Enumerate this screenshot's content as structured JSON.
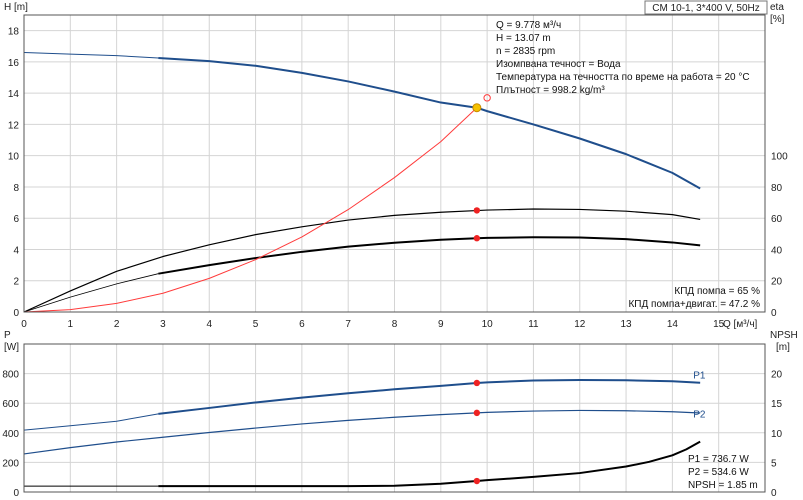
{
  "title": "CM 10-1, 3*400 V, 50Hz",
  "colors": {
    "head": "#1f4e8c",
    "efficiency": "#000000",
    "system": "#ff3b3b",
    "power": "#1f4e8c",
    "npsh": "#000000",
    "duty_point": "#ee2222",
    "intersection": "#f5c200"
  },
  "chart_data": [
    {
      "type": "line",
      "name": "upper",
      "xlabel": "Q [м³/ч]",
      "ylabel": "H [m]",
      "ylabel_unit": "",
      "y2label": "eta",
      "y2label_unit": "[%]",
      "xlim": [
        0,
        16
      ],
      "ylim": [
        0,
        19
      ],
      "y2lim": [
        0,
        190
      ],
      "xticks": [
        0,
        1,
        2,
        3,
        4,
        5,
        6,
        7,
        8,
        9,
        10,
        11,
        12,
        13,
        14,
        15
      ],
      "xtick_labels": [
        "0",
        "1",
        "2",
        "3",
        "4",
        "5",
        "6",
        "7",
        "8",
        "9",
        "10",
        "11",
        "12",
        "13",
        "14",
        "15"
      ],
      "yticks": [
        0,
        2,
        4,
        6,
        8,
        10,
        12,
        14,
        16,
        18
      ],
      "ytick_labels": [
        "0",
        "2",
        "4",
        "6",
        "8",
        "10",
        "12",
        "14",
        "16",
        "18"
      ],
      "y2ticks": [
        0,
        20,
        40,
        60,
        80,
        100
      ],
      "y2tick_labels": [
        "0",
        "20",
        "40",
        "60",
        "80",
        "100"
      ],
      "grid": true,
      "series": [
        {
          "key": "head_thin",
          "axis": "y",
          "x": [
            0,
            1,
            2,
            2.9
          ],
          "values": [
            16.6,
            16.5,
            16.4,
            16.25
          ]
        },
        {
          "key": "head",
          "axis": "y",
          "x": [
            2.9,
            4,
            5,
            6,
            7,
            8,
            9,
            9.778,
            10,
            11,
            12,
            13,
            14,
            14.6
          ],
          "values": [
            16.25,
            16.05,
            15.75,
            15.3,
            14.75,
            14.1,
            13.4,
            13.07,
            12.85,
            12.0,
            11.1,
            10.1,
            8.9,
            7.9
          ]
        },
        {
          "key": "eta_pump",
          "axis": "y2",
          "x": [
            0,
            1,
            2,
            3,
            4,
            5,
            6,
            7,
            8,
            9,
            9.778,
            10,
            11,
            12,
            13,
            14,
            14.6
          ],
          "values": [
            0,
            13.5,
            26,
            35.5,
            43,
            49.5,
            54.5,
            58.8,
            61.8,
            63.8,
            64.9,
            65.2,
            65.9,
            65.6,
            64.5,
            62.3,
            59.2
          ]
        },
        {
          "key": "eta_total_thin",
          "axis": "y2",
          "x": [
            0,
            1,
            2,
            2.9
          ],
          "values": [
            0,
            9.5,
            18,
            24.5
          ]
        },
        {
          "key": "eta_total",
          "axis": "y2",
          "x": [
            2.9,
            4,
            5,
            6,
            7,
            8,
            9,
            9.778,
            10,
            11,
            12,
            13,
            14,
            14.6
          ],
          "values": [
            24.5,
            30,
            34.5,
            38.5,
            41.8,
            44.3,
            46.2,
            47.2,
            47.4,
            47.8,
            47.7,
            46.6,
            44.5,
            42.6
          ]
        },
        {
          "key": "system",
          "axis": "y",
          "x": [
            0,
            1,
            2,
            3,
            4,
            5,
            6,
            7,
            8,
            9,
            9.778
          ],
          "values": [
            0,
            0.15,
            0.55,
            1.2,
            2.15,
            3.35,
            4.8,
            6.55,
            8.6,
            10.9,
            13.07
          ]
        }
      ],
      "duty_points": [
        {
          "x": 9.778,
          "axis": "y2",
          "value": 65
        },
        {
          "x": 9.778,
          "axis": "y2",
          "value": 47.2
        }
      ],
      "intersection_point": {
        "x": 9.778,
        "value": 13.07
      },
      "open_point": {
        "x": 10.0,
        "value": 13.7
      },
      "info_box": [
        "Q = 9.778 м³/ч",
        "H = 13.07 m",
        "n = 2835 rpm",
        "Изомпвана течност = Вода",
        "Температура на течността по време на работа = 20 °C",
        "Плътност = 998.2 kg/m³"
      ],
      "efficiency_notes": [
        "КПД помпа = 65 %",
        "КПД помпа+двигат. = 47.2 %"
      ]
    },
    {
      "type": "line",
      "name": "lower",
      "xlabel": "",
      "ylabel": "P",
      "ylabel_unit": "[W]",
      "y2label": "NPSH",
      "y2label_unit": "[m]",
      "xlim": [
        0,
        16
      ],
      "ylim": [
        0,
        1000
      ],
      "y2lim": [
        0,
        25
      ],
      "yticks": [
        0,
        200,
        400,
        600,
        800
      ],
      "ytick_labels": [
        "0",
        "200",
        "400",
        "600",
        "800"
      ],
      "y2ticks": [
        0,
        5,
        10,
        15,
        20
      ],
      "y2tick_labels": [
        "0",
        "5",
        "10",
        "15",
        "20"
      ],
      "grid": true,
      "series": [
        {
          "key": "p1_thin",
          "axis": "y",
          "x": [
            0,
            1,
            2,
            2.9
          ],
          "values": [
            418,
            448,
            478,
            528
          ]
        },
        {
          "key": "p1",
          "axis": "y",
          "x": [
            2.9,
            4,
            5,
            6,
            7,
            8,
            9,
            9.778,
            10,
            11,
            12,
            13,
            14,
            14.6
          ],
          "values": [
            528,
            568,
            605,
            638,
            667,
            694,
            717,
            736.7,
            741,
            753,
            757,
            755,
            748,
            738
          ],
          "label": "P1",
          "label_x": 14.45,
          "label_value": 768
        },
        {
          "key": "p2",
          "axis": "y",
          "x": [
            0,
            1,
            2,
            3,
            4,
            5,
            6,
            7,
            8,
            9,
            9.778,
            10,
            11,
            12,
            13,
            14,
            14.6
          ],
          "values": [
            257,
            300,
            338,
            370,
            402,
            432,
            460,
            484,
            505,
            523,
            534.6,
            538,
            547,
            551,
            549,
            542,
            534
          ],
          "label": "P2",
          "label_x": 14.45,
          "label_value": 505
        },
        {
          "key": "npsh_thin",
          "axis": "y2",
          "x": [
            0,
            2.9
          ],
          "values": [
            1.0,
            1.0
          ]
        },
        {
          "key": "npsh",
          "axis": "y2",
          "x": [
            2.9,
            4,
            5,
            6,
            7,
            8,
            9,
            9.778,
            10,
            11,
            12,
            13,
            13.5,
            14,
            14.3,
            14.6
          ],
          "values": [
            1.0,
            1.0,
            1.0,
            1.0,
            1.0,
            1.05,
            1.4,
            1.85,
            2.0,
            2.55,
            3.2,
            4.3,
            5.1,
            6.2,
            7.2,
            8.5
          ]
        }
      ],
      "duty_points": [
        {
          "x": 9.778,
          "axis": "y",
          "value": 736.7
        },
        {
          "x": 9.778,
          "axis": "y",
          "value": 534.6
        },
        {
          "x": 9.778,
          "axis": "y2",
          "value": 1.85
        }
      ],
      "readouts": [
        "P1 = 736.7 W",
        "P2 = 534.6 W",
        "NPSH = 1.85 m"
      ]
    }
  ]
}
